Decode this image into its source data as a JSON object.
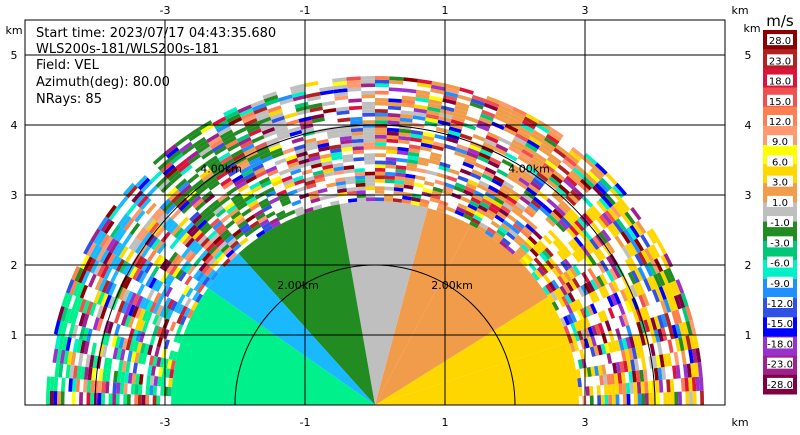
{
  "info": {
    "start_time": "Start time: 2023/07/17 04:43:35.680",
    "instrument": "WLS200s-181/WLS200s-181",
    "field": "Field: VEL",
    "azimuth": "Azimuth(deg): 80.00",
    "nrays": "NRays: 85"
  },
  "chart_data": {
    "type": "heatmap",
    "projection": "RHI sector (elevation 0°–180°)",
    "x_unit": "km",
    "y_unit": "km",
    "xlim": [
      -5.0,
      5.0
    ],
    "ylim": [
      0.0,
      5.5
    ],
    "x_ticks": [
      -3,
      -1,
      1,
      3
    ],
    "y_ticks": [
      1,
      2,
      3,
      4,
      5
    ],
    "grid": true,
    "max_range_km": 4.7,
    "range_rings": [
      {
        "radius_km": 2.0,
        "label": "2.00km"
      },
      {
        "radius_km": 4.0,
        "label": "4.00km"
      }
    ],
    "sector_colors": [
      {
        "from_deg": 0,
        "to_deg": 18,
        "color": "#ffd700"
      },
      {
        "from_deg": 18,
        "to_deg": 32,
        "color": "#ffd700"
      },
      {
        "from_deg": 32,
        "to_deg": 62,
        "color": "#f19c4a"
      },
      {
        "from_deg": 62,
        "to_deg": 75,
        "color": "#f19c4a"
      },
      {
        "from_deg": 75,
        "to_deg": 100,
        "color": "#bfbfbf"
      },
      {
        "from_deg": 100,
        "to_deg": 132,
        "color": "#228b22"
      },
      {
        "from_deg": 132,
        "to_deg": 145,
        "color": "#1ab8ff"
      },
      {
        "from_deg": 145,
        "to_deg": 180,
        "color": "#00f08c"
      }
    ],
    "colorbar": {
      "unit": "m/s",
      "labels": [
        "28.0",
        "23.0",
        "18.0",
        "15.0",
        "12.0",
        "9.0",
        "6.0",
        "3.0",
        "1.0",
        "-1.0",
        "-3.0",
        "-6.0",
        "-9.0",
        "-12.0",
        "-15.0",
        "-18.0",
        "-23.0",
        "-28.0"
      ],
      "colors": [
        "#8b0000",
        "#b22222",
        "#dc143c",
        "#f05050",
        "#ff7f50",
        "#ff9970",
        "#ffff00",
        "#ffd700",
        "#f19c4a",
        "#bfbfbf",
        "#228b22",
        "#00c878",
        "#00f0c8",
        "#1e90ff",
        "#3050e6",
        "#0000ff",
        "#9932cc",
        "#a0208c",
        "#800040"
      ]
    }
  }
}
